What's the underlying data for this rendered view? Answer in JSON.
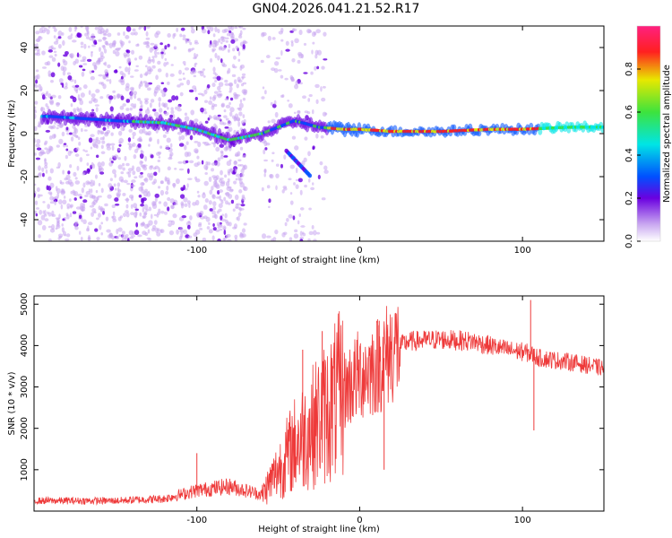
{
  "title": "GN04.2026.041.21.52.R17",
  "chart_data": [
    {
      "type": "heatmap",
      "name": "spectrogram",
      "xlabel": "Height of straight line (km)",
      "ylabel": "Frequency (Hz)",
      "xlim": [
        -200,
        150
      ],
      "ylim": [
        -50,
        50
      ],
      "x_ticks": [
        -100,
        0,
        100
      ],
      "y_ticks": [
        -40,
        -20,
        0,
        20,
        40
      ],
      "description_series": [
        {
          "name": "main-ridge",
          "x": [
            -190,
            -150,
            -120,
            -100,
            -80,
            -60,
            -40,
            -25,
            -10,
            0,
            20,
            50,
            80,
            100,
            130,
            150
          ],
          "y": [
            8,
            6,
            5,
            2,
            -3,
            0,
            6,
            3,
            2,
            2,
            1,
            1,
            2,
            2,
            3,
            3
          ]
        },
        {
          "name": "secondary-branch",
          "x": [
            -45,
            -40,
            -35,
            -30
          ],
          "y": [
            -8,
            -12,
            -16,
            -20
          ]
        }
      ],
      "colorbar": {
        "label": "Normalized spectral amplitude",
        "range": [
          0,
          1
        ],
        "ticks": [
          0.0,
          0.2,
          0.4,
          0.6,
          0.8
        ]
      },
      "colors": {
        "low": "#c8a6f0",
        "violet": "#6a00e0",
        "blue": "#0050ff",
        "cyan": "#00e5e5",
        "green": "#3de33d",
        "yellow": "#e8e800",
        "red": "#ff2020"
      }
    },
    {
      "type": "line",
      "name": "snr",
      "xlabel": "Height of straight line (km)",
      "ylabel": "SNR (10 * v/v)",
      "xlim": [
        -200,
        150
      ],
      "ylim": [
        0,
        5200
      ],
      "x_ticks": [
        -100,
        0,
        100
      ],
      "y_ticks": [
        1000,
        2000,
        3000,
        4000,
        5000
      ],
      "color": "#ee3a3a",
      "envelope": {
        "x": [
          -200,
          -150,
          -120,
          -100,
          -80,
          -60,
          -50,
          -40,
          -30,
          -20,
          -10,
          0,
          10,
          20,
          30,
          50,
          70,
          90,
          100,
          105,
          110,
          130,
          150
        ],
        "y": [
          250,
          250,
          300,
          500,
          600,
          400,
          1000,
          1600,
          2000,
          2400,
          2900,
          3300,
          3500,
          3900,
          4100,
          4150,
          4100,
          3900,
          3850,
          3800,
          3700,
          3600,
          3450
        ]
      },
      "spikes": [
        {
          "x": -100,
          "y": 1400
        },
        {
          "x": -35,
          "y": 3900
        },
        {
          "x": -23,
          "y": 4350
        },
        {
          "x": 12,
          "y": 4600
        },
        {
          "x": 15,
          "y": 1000
        },
        {
          "x": 105,
          "y": 5100
        },
        {
          "x": 107,
          "y": 1950
        }
      ]
    }
  ]
}
